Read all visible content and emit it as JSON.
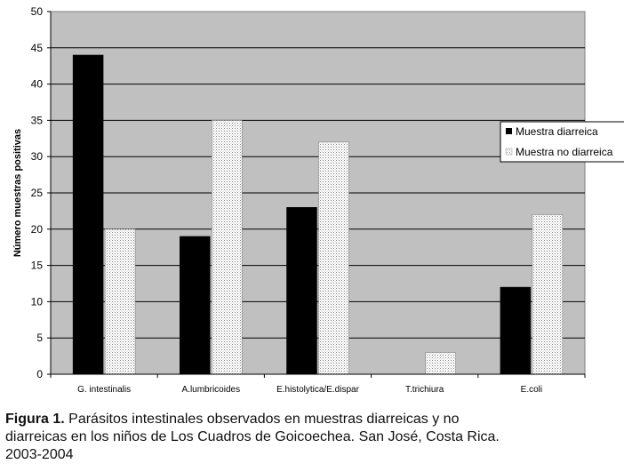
{
  "chart_data": {
    "type": "bar",
    "categories": [
      "G. intestinalis",
      "A.lumbricoides",
      "E.histolytica/E.dispar",
      "T.trichiura",
      "E.coli"
    ],
    "series": [
      {
        "name": "Muestra diarreica",
        "values": [
          44,
          19,
          23,
          0,
          12
        ],
        "color": "#000000",
        "pattern": "solid"
      },
      {
        "name": "Muestra no diarreica",
        "values": [
          20,
          35,
          32,
          3,
          22
        ],
        "color": "#ffffff",
        "pattern": "dotted"
      }
    ],
    "ylabel": "Número muestras positivas",
    "ylim": [
      0,
      50
    ],
    "yticks": [
      0,
      5,
      10,
      15,
      20,
      25,
      30,
      35,
      40,
      45,
      50
    ],
    "grid": true,
    "plot_background": "#c0c0c0",
    "legend": "right"
  },
  "caption": {
    "label": "Figura 1.",
    "line1": "Parásitos intestinales observados en muestras diarreicas y no",
    "line2": "diarreicas en los niños de Los Cuadros de Goicoechea. San José, Costa Rica.",
    "line3": "2003-2004"
  }
}
